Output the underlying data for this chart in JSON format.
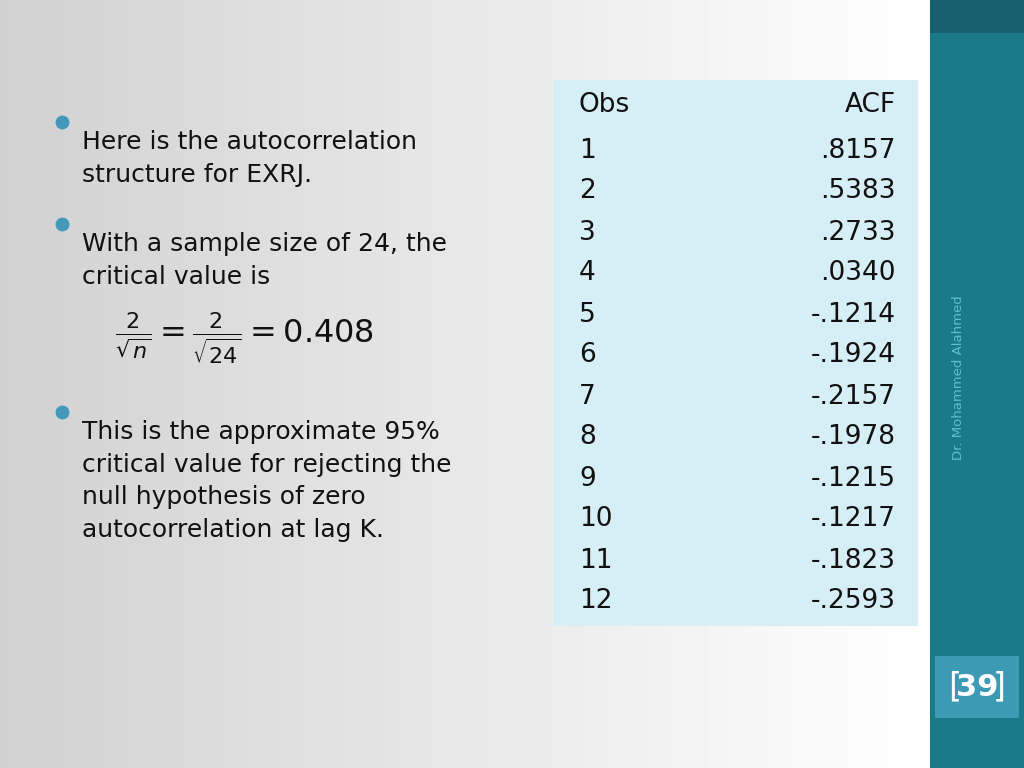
{
  "bullet_points": [
    "Here is the autocorrelation\nstructure for EXRJ.",
    "With a sample size of 24, the\ncritical value is",
    "This is the approximate 95%\ncritical value for rejecting the\nnull hypothesis of zero\nautocorrelation at lag K."
  ],
  "table_header": [
    "Obs",
    "ACF"
  ],
  "table_obs": [
    1,
    2,
    3,
    4,
    5,
    6,
    7,
    8,
    9,
    10,
    11,
    12
  ],
  "table_acf": [
    ".8157",
    ".5383",
    ".2733",
    ".0340",
    "-.1214",
    "-.1924",
    "-.2157",
    "-.1978",
    "-.1215",
    "-.1217",
    "-.1823",
    "-.2593"
  ],
  "slide_bg_left": "#e8e8e8",
  "slide_bg_right": "#ffffff",
  "table_bg": "#d6eef5",
  "sidebar_color": "#1a7a8a",
  "sidebar_label_color": "#5dbfcf",
  "page_num_bg": "#3d9ab5",
  "page_num": "39",
  "author": "Dr. Mohammed Alahmed",
  "bullet_color": "#4499bb",
  "text_color": "#111111",
  "bullet_fontsize": 18,
  "table_fontsize": 19
}
